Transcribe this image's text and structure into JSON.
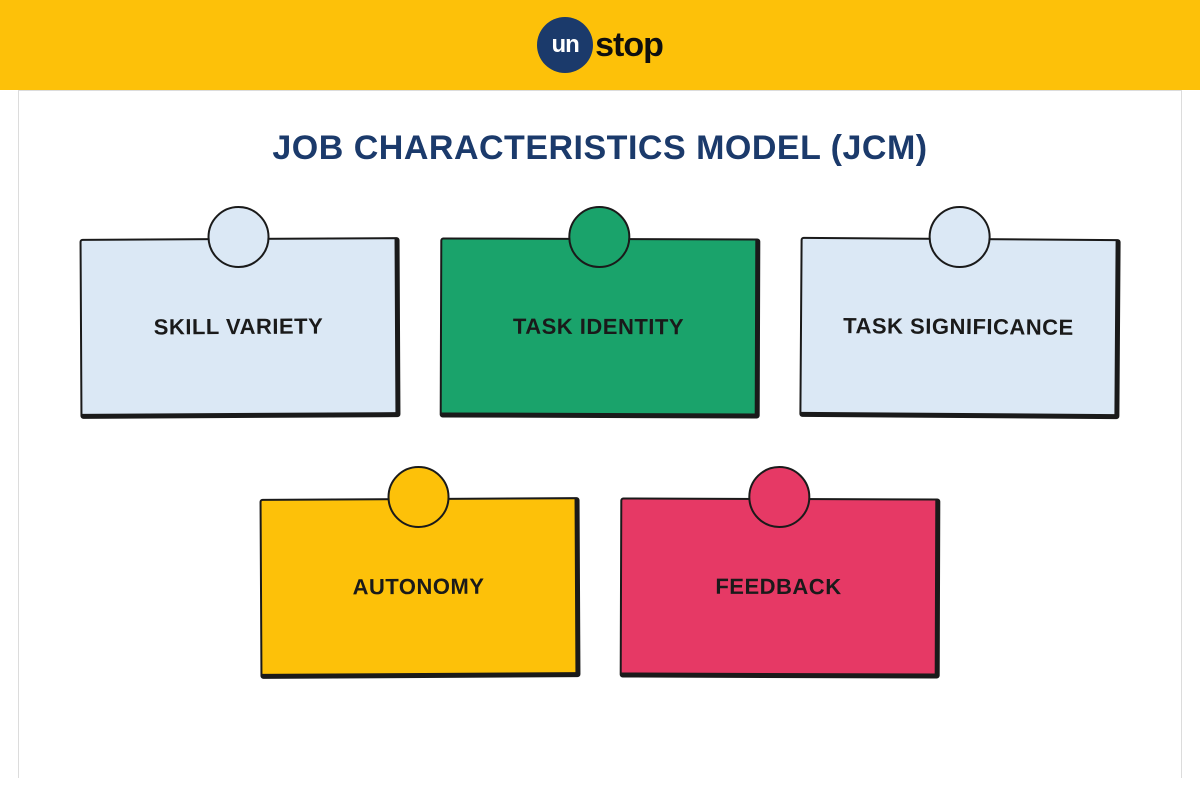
{
  "colors": {
    "header_band": "#fdc109",
    "logo_badge_bg": "#1b3a6b",
    "logo_badge_text": "#ffffff",
    "logo_tail_text": "#0f0f0f",
    "frame_bg": "#ffffff",
    "title_color": "#1b3a6b",
    "card_border": "#1a1a1a",
    "card_text": "#1a1a1a",
    "dot_border": "#1a1a1a"
  },
  "logo": {
    "badge_text": "un",
    "tail_text": "stop"
  },
  "title": {
    "text": "JOB CHARACTERISTICS MODEL (JCM)",
    "fontsize": 34
  },
  "card_label_fontsize": 22,
  "cards": [
    [
      {
        "label": "SKILL VARIETY",
        "bg": "#dbe8f5",
        "dot_fill": "#dbe8f5"
      },
      {
        "label": "TASK IDENTITY",
        "bg": "#1aa36b",
        "dot_fill": "#1aa36b"
      },
      {
        "label": "TASK SIGNIFICANCE",
        "bg": "#dbe8f5",
        "dot_fill": "#dbe8f5"
      }
    ],
    [
      {
        "label": "AUTONOMY",
        "bg": "#fdc109",
        "dot_fill": "#fdc109"
      },
      {
        "label": "FEEDBACK",
        "bg": "#e63965",
        "dot_fill": "#e63965"
      }
    ]
  ]
}
